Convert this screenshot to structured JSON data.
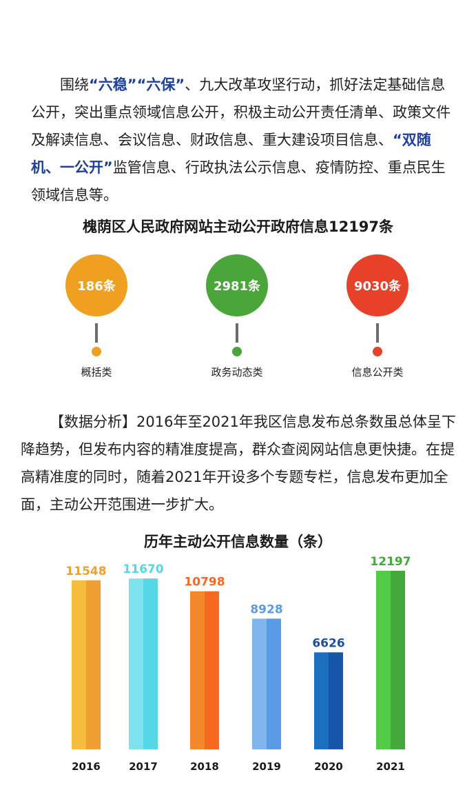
{
  "intro": {
    "s1": "围绕",
    "h1": "“六稳”“六保”",
    "s2": "、九大改革攻坚行动，抓好法定基础信息公开，突出重点领域信息公开，积极主动公开责任清单、政策文件及解读信息、会议信息、财政信息、重大建设项目信息、",
    "h2": "“双随机、一公开”",
    "s3": "监管信息、行政执法公示信息、疫情防控、重点民生领域信息等。"
  },
  "summary_title": "槐荫区人民政府网站主动公开政府信息12197条",
  "stats": [
    {
      "value": "186条",
      "label": "概括类",
      "color": "#f0a020"
    },
    {
      "value": "2981条",
      "label": "政务动态类",
      "color": "#4aa63a"
    },
    {
      "value": "9030条",
      "label": "信息公开类",
      "color": "#e8412a"
    }
  ],
  "analysis": "【数据分析】2016年至2021年我区信息发布总条数虽总体呈下降趋势，但发布内容的精准度提高，群众查阅网站信息更快捷。在提高精准度的同时，随着2021年开设多个专题专栏，信息发布更加全面，主动公开范围进一步扩大。",
  "chart_data": {
    "type": "bar",
    "title": "历年主动公开信息数量（条）",
    "categories": [
      "2016",
      "2017",
      "2018",
      "2019",
      "2020",
      "2021"
    ],
    "values": [
      11548,
      11670,
      10798,
      8928,
      6626,
      12197
    ],
    "ylim": [
      0,
      13000
    ],
    "bar_colors": [
      [
        "#f5bd3c",
        "#f0a030"
      ],
      [
        "#7fe3ee",
        "#54d8e6"
      ],
      [
        "#f28a2a",
        "#f46a20"
      ],
      [
        "#7fb6ee",
        "#5a9be6"
      ],
      [
        "#1c6ec0",
        "#1556a8"
      ],
      [
        "#52cc46",
        "#43a93d"
      ]
    ],
    "label_colors": [
      "#f0a030",
      "#54d8e6",
      "#f46a20",
      "#5a9be6",
      "#1a4fa0",
      "#43a93d"
    ],
    "grid": false,
    "legend": "none"
  }
}
